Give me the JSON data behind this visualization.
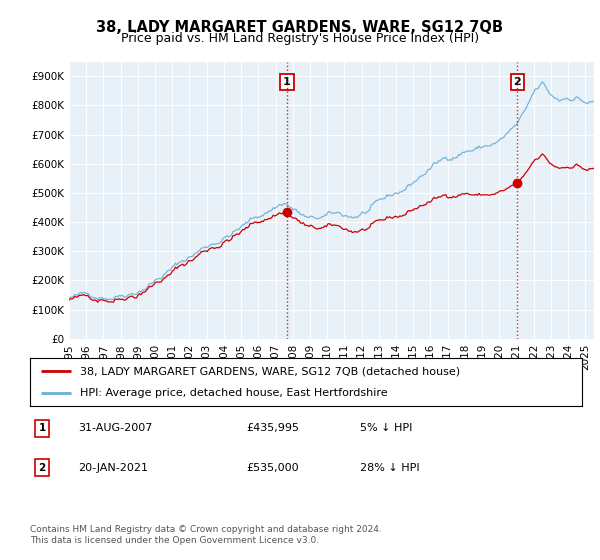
{
  "title": "38, LADY MARGARET GARDENS, WARE, SG12 7QB",
  "subtitle": "Price paid vs. HM Land Registry's House Price Index (HPI)",
  "ylim": [
    0,
    950000
  ],
  "yticks": [
    0,
    100000,
    200000,
    300000,
    400000,
    500000,
    600000,
    700000,
    800000,
    900000
  ],
  "ytick_labels": [
    "£0",
    "£100K",
    "£200K",
    "£300K",
    "£400K",
    "£500K",
    "£600K",
    "£700K",
    "£800K",
    "£900K"
  ],
  "xlim_start": 1995.0,
  "xlim_end": 2025.5,
  "plot_bg_color": "#e8f0f8",
  "sale1_x": 2007.667,
  "sale1_y": 435995,
  "sale2_x": 2021.05,
  "sale2_y": 535000,
  "legend_line1": "38, LADY MARGARET GARDENS, WARE, SG12 7QB (detached house)",
  "legend_line2": "HPI: Average price, detached house, East Hertfordshire",
  "table_row1": [
    "1",
    "31-AUG-2007",
    "£435,995",
    "5% ↓ HPI"
  ],
  "table_row2": [
    "2",
    "20-JAN-2021",
    "£535,000",
    "28% ↓ HPI"
  ],
  "footnote": "Contains HM Land Registry data © Crown copyright and database right 2024.\nThis data is licensed under the Open Government Licence v3.0.",
  "hpi_color": "#6baed6",
  "price_color": "#cc0000",
  "grid_color": "#ffffff",
  "title_fontsize": 10.5,
  "subtitle_fontsize": 9,
  "tick_fontsize": 7.5,
  "legend_fontsize": 8,
  "table_fontsize": 8,
  "footnote_fontsize": 6.5
}
